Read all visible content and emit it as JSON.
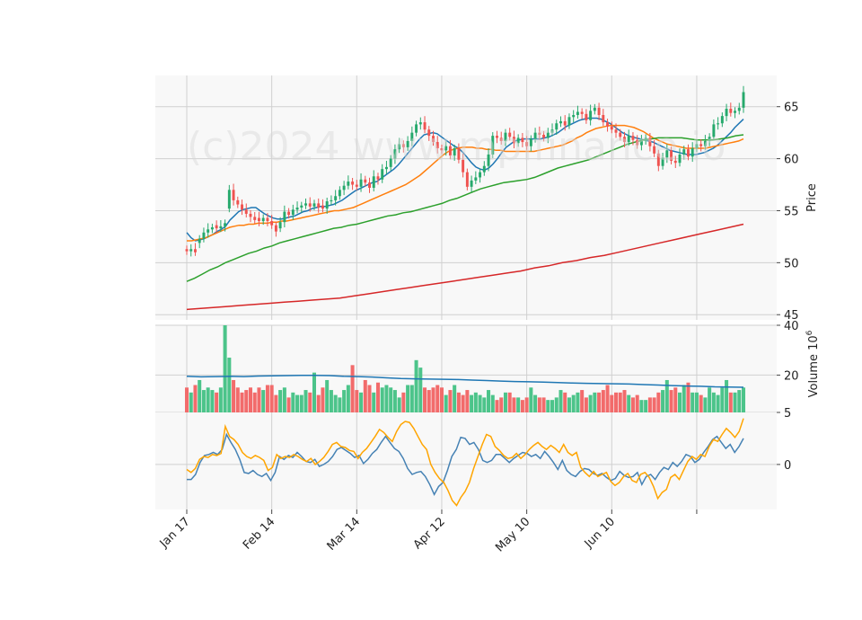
{
  "chart_data": {
    "type": "candlestick",
    "watermark": "(c)2024 www.mplfinance.io",
    "x_tick_labels": [
      "Jan 17",
      "Feb 14",
      "Mar 14",
      "Apr 12",
      "May 10",
      "Jun 10"
    ],
    "price_panel": {
      "ylabel": "Price",
      "ylim": [
        44.5,
        68
      ],
      "yticks": [
        45,
        50,
        55,
        60,
        65
      ],
      "grid": true,
      "candles": {
        "colors": {
          "up": "#26a96c",
          "down": "#ef5350"
        },
        "close": [
          51.1,
          51.3,
          51.0,
          52.3,
          52.9,
          53.2,
          53.4,
          53.3,
          53.5,
          53.8,
          57.0,
          56.0,
          55.6,
          55.1,
          54.7,
          54.4,
          54.1,
          54.0,
          54.3,
          54.0,
          53.6,
          53.0,
          53.9,
          54.9,
          54.6,
          55.1,
          55.3,
          55.5,
          55.7,
          55.4,
          55.7,
          55.3,
          55.2,
          55.9,
          56.0,
          56.4,
          57.0,
          57.4,
          57.8,
          57.5,
          57.3,
          58.0,
          57.7,
          57.2,
          58.3,
          58.0,
          59.0,
          59.2,
          60.0,
          60.9,
          61.4,
          61.1,
          61.7,
          62.5,
          63.3,
          63.5,
          62.8,
          62.2,
          61.6,
          61.0,
          60.8,
          61.2,
          60.3,
          61.0,
          59.9,
          58.7,
          57.3,
          57.9,
          58.2,
          58.7,
          59.3,
          60.4,
          62.2,
          62.0,
          61.7,
          62.5,
          62.1,
          61.5,
          62.0,
          61.6,
          61.2,
          61.9,
          62.5,
          62.3,
          62.0,
          62.5,
          62.8,
          63.4,
          63.6,
          63.2,
          64.0,
          64.2,
          64.5,
          64.3,
          63.7,
          64.6,
          64.9,
          64.2,
          63.5,
          63.1,
          62.8,
          62.5,
          62.1,
          61.6,
          62.2,
          61.8,
          61.3,
          61.7,
          62.0,
          61.2,
          60.5,
          59.3,
          60.1,
          60.8,
          59.8,
          59.6,
          60.4,
          60.9,
          60.2,
          61.0,
          61.4,
          61.2,
          61.7,
          62.1,
          63.3,
          63.4,
          64.1,
          64.8,
          64.4,
          64.6,
          64.9,
          66.4
        ],
        "open": [
          51.3,
          51.1,
          51.3,
          51.9,
          52.3,
          52.9,
          53.2,
          53.6,
          53.3,
          53.5,
          55.2,
          57.0,
          56.0,
          55.6,
          55.1,
          54.7,
          54.4,
          54.3,
          54.0,
          54.3,
          54.0,
          53.6,
          53.3,
          53.9,
          54.9,
          54.6,
          55.1,
          55.3,
          55.5,
          55.7,
          55.4,
          55.7,
          55.5,
          55.2,
          55.9,
          56.0,
          56.4,
          57.0,
          57.4,
          57.8,
          57.5,
          57.3,
          58.0,
          57.7,
          57.2,
          58.3,
          58.0,
          59.0,
          59.2,
          60.0,
          60.9,
          61.4,
          61.1,
          61.7,
          62.5,
          63.3,
          63.5,
          62.8,
          62.2,
          61.6,
          61.0,
          60.8,
          61.2,
          60.3,
          61.0,
          59.9,
          58.7,
          57.3,
          57.9,
          58.2,
          58.7,
          59.3,
          60.4,
          62.2,
          62.0,
          61.7,
          62.5,
          62.1,
          61.5,
          62.0,
          61.6,
          61.2,
          61.9,
          62.5,
          62.3,
          62.0,
          62.5,
          62.8,
          63.4,
          63.6,
          63.2,
          64.0,
          64.2,
          64.5,
          64.3,
          63.7,
          64.6,
          64.9,
          64.2,
          63.5,
          63.1,
          62.8,
          62.5,
          62.1,
          61.6,
          62.2,
          61.8,
          61.3,
          61.7,
          62.0,
          61.2,
          60.5,
          59.3,
          60.1,
          60.8,
          59.8,
          59.6,
          60.4,
          60.9,
          60.2,
          61.0,
          61.4,
          61.2,
          61.7,
          62.1,
          63.3,
          63.4,
          64.1,
          64.8,
          64.4,
          64.6,
          64.9
        ]
      },
      "moving_averages": [
        {
          "color": "#1f77b4",
          "values": [
            52.9,
            52.4,
            52.1,
            52.2,
            52.3,
            52.5,
            52.7,
            53.0,
            53.2,
            53.5,
            54.1,
            54.5,
            54.9,
            55.1,
            55.2,
            55.3,
            55.3,
            55.0,
            54.7,
            54.5,
            54.3,
            54.2,
            54.2,
            54.3,
            54.4,
            54.5,
            54.7,
            54.9,
            55.0,
            55.2,
            55.3,
            55.4,
            55.4,
            55.5,
            55.6,
            55.8,
            56.0,
            56.3,
            56.6,
            56.9,
            57.1,
            57.3,
            57.5,
            57.7,
            57.8,
            58.1,
            58.4,
            58.7,
            59.0,
            59.4,
            59.9,
            60.4,
            60.9,
            61.4,
            61.9,
            62.3,
            62.4,
            62.5,
            62.4,
            62.1,
            61.8,
            61.5,
            61.2,
            61.0,
            60.6,
            60.1,
            59.6,
            59.2,
            59.0,
            58.9,
            59.1,
            59.5,
            60.0,
            60.6,
            61.1,
            61.4,
            61.7,
            61.8,
            61.9,
            61.9,
            61.9,
            61.9,
            61.9,
            62.0,
            62.1,
            62.3,
            62.5,
            62.8,
            63.1,
            63.3,
            63.5,
            63.7,
            63.8,
            63.9,
            63.9,
            63.9,
            63.8,
            63.6,
            63.4,
            63.1,
            62.8,
            62.5,
            62.3,
            62.1,
            62.0,
            61.9,
            61.8,
            61.7,
            61.6,
            61.4,
            61.2,
            61.0,
            60.8,
            60.7,
            60.6,
            60.5,
            60.4,
            60.4,
            60.4,
            60.5,
            60.6,
            60.8,
            61.0,
            61.3,
            61.7,
            62.1,
            62.5,
            63.0,
            63.4,
            63.8
          ]
        },
        {
          "color": "#ff7f0e",
          "values": [
            52.1,
            52.1,
            52.2,
            52.3,
            52.4,
            52.6,
            52.8,
            53.0,
            53.2,
            53.4,
            53.5,
            53.6,
            53.6,
            53.7,
            53.7,
            53.8,
            53.8,
            53.8,
            53.9,
            53.9,
            54.0,
            54.0,
            54.1,
            54.2,
            54.3,
            54.4,
            54.5,
            54.6,
            54.7,
            54.8,
            54.9,
            55.0,
            55.0,
            55.1,
            55.2,
            55.3,
            55.5,
            55.7,
            55.9,
            56.1,
            56.3,
            56.5,
            56.7,
            56.9,
            57.1,
            57.3,
            57.5,
            57.8,
            58.1,
            58.4,
            58.8,
            59.2,
            59.6,
            60.0,
            60.4,
            60.7,
            60.9,
            61.0,
            61.1,
            61.1,
            61.1,
            61.0,
            61.0,
            60.9,
            60.9,
            60.8,
            60.8,
            60.7,
            60.7,
            60.7,
            60.7,
            60.7,
            60.7,
            60.7,
            60.8,
            60.9,
            61.0,
            61.1,
            61.2,
            61.3,
            61.5,
            61.7,
            62.0,
            62.2,
            62.5,
            62.7,
            62.9,
            63.0,
            63.1,
            63.2,
            63.2,
            63.2,
            63.2,
            63.1,
            63.0,
            62.8,
            62.6,
            62.3,
            62.0,
            61.8,
            61.6,
            61.4,
            61.3,
            61.2,
            61.1,
            61.0,
            61.0,
            61.0,
            61.0,
            61.0,
            61.1,
            61.2,
            61.3,
            61.4,
            61.5,
            61.6,
            61.7,
            61.9
          ]
        },
        {
          "color": "#2ca02c",
          "values": [
            48.2,
            48.5,
            48.9,
            49.3,
            49.6,
            50.0,
            50.3,
            50.6,
            50.9,
            51.1,
            51.4,
            51.6,
            51.9,
            52.1,
            52.3,
            52.5,
            52.7,
            52.9,
            53.1,
            53.3,
            53.4,
            53.6,
            53.7,
            53.9,
            54.1,
            54.3,
            54.5,
            54.6,
            54.8,
            54.9,
            55.1,
            55.3,
            55.5,
            55.7,
            56.0,
            56.2,
            56.5,
            56.8,
            57.1,
            57.3,
            57.5,
            57.7,
            57.8,
            57.9,
            58.0,
            58.2,
            58.5,
            58.8,
            59.1,
            59.3,
            59.5,
            59.7,
            59.9,
            60.2,
            60.5,
            60.8,
            61.1,
            61.4,
            61.6,
            61.8,
            61.9,
            62.0,
            62.0,
            62.0,
            62.0,
            61.9,
            61.8,
            61.8,
            61.8,
            61.9,
            62.0,
            62.2,
            62.3
          ]
        },
        {
          "color": "#d62728",
          "values": [
            45.5,
            45.6,
            45.7,
            45.8,
            45.9,
            46.0,
            46.1,
            46.2,
            46.3,
            46.4,
            46.5,
            46.6,
            46.8,
            47.0,
            47.2,
            47.4,
            47.6,
            47.8,
            48.0,
            48.2,
            48.4,
            48.6,
            48.8,
            49.0,
            49.2,
            49.5,
            49.7,
            50.0,
            50.2,
            50.5,
            50.7,
            51.0,
            51.3,
            51.6,
            51.9,
            52.2,
            52.5,
            52.8,
            53.1,
            53.4,
            53.7
          ]
        }
      ]
    },
    "volume_panel": {
      "ylabel": "Volume  10",
      "ylabel_exponent": "6",
      "ylim": [
        5,
        40
      ],
      "yticks": [
        5,
        20,
        40
      ],
      "bars": [
        15,
        13,
        16,
        18,
        14,
        15,
        14,
        13,
        15,
        40,
        27,
        18,
        15,
        13,
        14,
        15,
        13,
        15,
        14,
        16,
        16,
        12,
        14,
        15,
        11,
        13,
        12,
        12,
        14,
        13,
        21,
        12,
        15,
        18,
        14,
        12,
        11,
        14,
        16,
        24,
        14,
        13,
        18,
        16,
        13,
        17,
        15,
        16,
        15,
        14,
        11,
        13,
        16,
        16,
        26,
        23,
        15,
        14,
        15,
        16,
        15,
        12,
        14,
        16,
        13,
        12,
        14,
        12,
        13,
        12,
        11,
        14,
        12,
        10,
        11,
        13,
        13,
        11,
        11,
        10,
        11,
        15,
        12,
        11,
        11,
        10,
        10,
        11,
        14,
        13,
        11,
        12,
        13,
        14,
        11,
        12,
        13,
        13,
        14,
        16,
        12,
        13,
        13,
        14,
        12,
        11,
        12,
        10,
        10,
        11,
        11,
        13,
        14,
        18,
        14,
        15,
        13,
        16,
        17,
        13,
        13,
        12,
        11,
        15,
        13,
        12,
        15,
        18,
        13,
        13,
        14,
        15,
        10,
        10,
        15,
        18
      ],
      "volume_ma": {
        "color": "#1f77b4",
        "values": [
          19.5,
          19.3,
          19.4,
          19.5,
          19.4,
          19.6,
          19.7,
          19.8,
          19.9,
          19.9,
          19.8,
          19.5,
          19.4,
          19.2,
          18.9,
          18.6,
          18.5,
          18.4,
          18.3,
          18.2,
          18.0,
          17.8,
          17.6,
          17.4,
          17.3,
          17.2,
          17.0,
          16.8,
          16.7,
          16.6,
          16.5,
          16.4,
          16.2,
          16.0,
          15.8,
          15.6,
          15.5,
          15.3,
          15.2,
          15.1
        ]
      }
    },
    "oscillator_panel": {
      "yticks": [
        0
      ],
      "ylim": [
        -4.5,
        5.2
      ],
      "series": [
        {
          "color": "#4682b4",
          "values": [
            -1.5,
            -1.5,
            -1.0,
            0.2,
            0.9,
            1.0,
            1.2,
            1.0,
            1.5,
            3.0,
            2.2,
            1.5,
            0.5,
            -0.8,
            -0.9,
            -0.6,
            -1.0,
            -1.2,
            -0.9,
            -1.6,
            -0.8,
            0.8,
            0.5,
            0.9,
            0.7,
            1.2,
            0.8,
            0.3,
            0.2,
            0.5,
            -0.2,
            0.0,
            0.3,
            0.8,
            1.5,
            1.7,
            1.4,
            1.1,
            0.7,
            0.9,
            0.1,
            0.5,
            1.1,
            1.5,
            2.2,
            2.8,
            2.2,
            1.6,
            1.3,
            0.6,
            -0.4,
            -1.0,
            -0.8,
            -0.7,
            -1.2,
            -2.0,
            -3.0,
            -2.2,
            -1.8,
            -0.6,
            0.8,
            1.5,
            2.7,
            2.6,
            2.0,
            2.2,
            1.5,
            0.4,
            0.2,
            0.4,
            1.0,
            1.0,
            0.6,
            0.2,
            0.6,
            0.9,
            1.2,
            1.1,
            0.8,
            1.0,
            0.6,
            1.3,
            0.8,
            0.2,
            -0.5,
            0.4,
            -0.6,
            -1.0,
            -1.2,
            -0.7,
            -0.4,
            -0.5,
            -0.9,
            -1.1,
            -0.9,
            -1.3,
            -1.6,
            -1.4,
            -0.7,
            -1.1,
            -1.3,
            -1.2,
            -0.8,
            -2.0,
            -1.2,
            -1.0,
            -1.5,
            -0.8,
            -0.3,
            -0.5,
            0.2,
            -0.2,
            0.3,
            1.0,
            0.8,
            0.2,
            0.5,
            1.2,
            1.8,
            2.5,
            2.8,
            2.2,
            1.6,
            2.0,
            1.2,
            1.8,
            2.6
          ]
        },
        {
          "color": "#ffa500",
          "values": [
            -0.5,
            -0.8,
            -0.4,
            0.5,
            0.8,
            0.7,
            1.0,
            0.9,
            1.1,
            3.8,
            2.8,
            2.5,
            2.0,
            1.2,
            0.8,
            0.6,
            0.9,
            0.7,
            0.4,
            -0.6,
            -0.3,
            1.0,
            0.6,
            0.8,
            0.7,
            1.0,
            0.8,
            0.5,
            0.3,
            0.6,
            0.0,
            0.3,
            0.7,
            1.3,
            2.0,
            2.2,
            1.8,
            1.7,
            1.4,
            1.3,
            0.6,
            1.2,
            1.6,
            2.2,
            2.8,
            3.5,
            3.2,
            2.7,
            2.3,
            3.3,
            4.0,
            4.3,
            4.2,
            3.6,
            2.8,
            2.0,
            1.5,
            0.0,
            -0.8,
            -1.4,
            -1.8,
            -2.6,
            -3.6,
            -4.1,
            -3.3,
            -2.7,
            -1.8,
            -0.4,
            0.8,
            2.0,
            3.0,
            2.8,
            1.8,
            1.4,
            0.9,
            0.6,
            0.7,
            1.1,
            0.6,
            1.0,
            1.5,
            1.9,
            2.2,
            1.8,
            1.5,
            1.9,
            1.6,
            1.2,
            2.0,
            1.2,
            0.9,
            1.2,
            -0.3,
            -0.8,
            -1.2,
            -0.7,
            -1.2,
            -1.0,
            -0.8,
            -1.7,
            -2.1,
            -1.8,
            -1.2,
            -0.9,
            -1.6,
            -1.8,
            -1.0,
            -0.8,
            -1.3,
            -2.2,
            -3.4,
            -2.8,
            -2.5,
            -1.3,
            -1.0,
            -1.5,
            -0.6,
            0.3,
            0.8,
            0.5,
            1.0,
            0.8,
            1.8,
            2.5,
            2.3,
            3.0,
            3.6,
            3.2,
            2.7,
            3.3,
            4.6
          ]
        }
      ]
    }
  }
}
